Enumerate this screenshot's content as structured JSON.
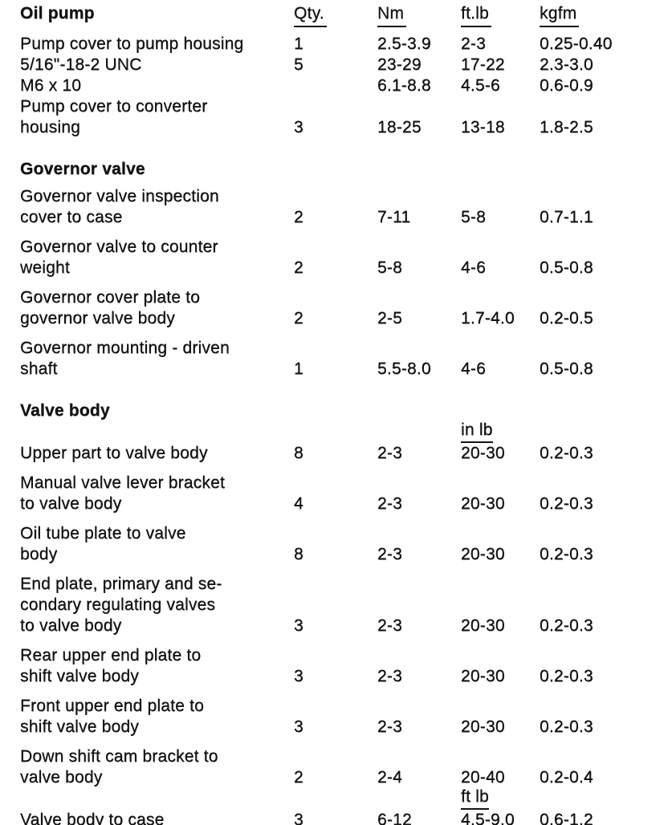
{
  "page": {
    "background_color": "#ffffff",
    "text_color": "#141414",
    "kind": "scanned torque specification table"
  },
  "columns": {
    "qty": "Qty.",
    "nm": "Nm",
    "ftlb": "ft.lb",
    "kgfm": "kgfm"
  },
  "sections": [
    {
      "heading": "Oil pump",
      "rows": [
        {
          "desc": [
            "Pump cover to pump housing"
          ],
          "qty": "1",
          "nm": "2.5-3.9",
          "ftlb": "2-3",
          "kgfm": "0.25-0.40"
        },
        {
          "desc": [
            "5/16\"-18-2 UNC"
          ],
          "qty": "5",
          "nm": "23-29",
          "ftlb": "17-22",
          "kgfm": "2.3-3.0"
        },
        {
          "desc": [
            "M6 x 10"
          ],
          "qty": "",
          "nm": "6.1-8.8",
          "ftlb": "4.5-6",
          "kgfm": "0.6-0.9"
        },
        {
          "desc": [
            "Pump cover to converter",
            "housing"
          ],
          "qty": "3",
          "nm": "18-25",
          "ftlb": "13-18",
          "kgfm": "1.8-2.5"
        }
      ]
    },
    {
      "heading": "Governor valve",
      "rows": [
        {
          "desc": [
            "Governor valve inspection",
            "cover to case"
          ],
          "qty": "2",
          "nm": "7-11",
          "ftlb": "5-8",
          "kgfm": "0.7-1.1"
        },
        {
          "desc": [
            "Governor valve to counter",
            "weight"
          ],
          "qty": "2",
          "nm": "5-8",
          "ftlb": "4-6",
          "kgfm": "0.5-0.8"
        },
        {
          "desc": [
            "Governor cover plate to",
            "governor valve body"
          ],
          "qty": "2",
          "nm": "2-5",
          "ftlb": "1.7-4.0",
          "kgfm": "0.2-0.5"
        },
        {
          "desc": [
            "Governor mounting - driven",
            "shaft"
          ],
          "qty": "1",
          "nm": "5.5-8.0",
          "ftlb": "4-6",
          "kgfm": "0.5-0.8"
        }
      ]
    },
    {
      "heading": "Valve body",
      "rows": [
        {
          "desc": [
            "Upper part to valve body"
          ],
          "qty": "8",
          "nm": "2-3",
          "ftlb_note": "in lb",
          "ftlb": "20-30",
          "kgfm": "0.2-0.3"
        },
        {
          "desc": [
            "Manual valve lever bracket",
            "to valve body"
          ],
          "qty": "4",
          "nm": "2-3",
          "ftlb": "20-30",
          "kgfm": "0.2-0.3"
        },
        {
          "desc": [
            "Oil tube plate to valve",
            "body"
          ],
          "qty": "8",
          "nm": "2-3",
          "ftlb": "20-30",
          "kgfm": "0.2-0.3"
        },
        {
          "desc": [
            "End plate, primary and se-",
            "condary regulating valves",
            "to valve body"
          ],
          "qty": "3",
          "nm": "2-3",
          "ftlb": "20-30",
          "kgfm": "0.2-0.3"
        },
        {
          "desc": [
            "Rear upper end plate to",
            "shift valve body"
          ],
          "qty": "3",
          "nm": "2-3",
          "ftlb": "20-30",
          "kgfm": "0.2-0.3"
        },
        {
          "desc": [
            "Front upper end plate to",
            "shift valve body"
          ],
          "qty": "3",
          "nm": "2-3",
          "ftlb": "20-30",
          "kgfm": "0.2-0.3"
        },
        {
          "desc": [
            "Down shift cam bracket to",
            "valve body"
          ],
          "qty": "2",
          "nm": "2-4",
          "ftlb": "20-40",
          "kgfm": "0.2-0.4"
        },
        {
          "desc": [
            "Valve body to case"
          ],
          "qty": "3",
          "nm": "6-12",
          "ftlb_note": "ft lb",
          "ftlb": "4.5-9.0",
          "kgfm": "0.6-1.2"
        }
      ]
    }
  ]
}
